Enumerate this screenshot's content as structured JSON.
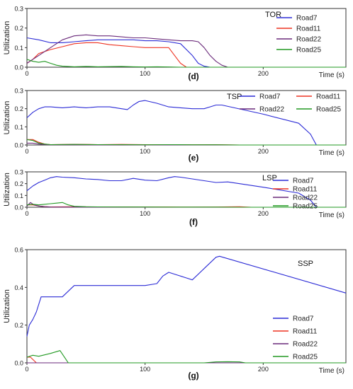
{
  "colors": {
    "Road7": "#2b2bd6",
    "Road11": "#ee3322",
    "Road22": "#6a2a7a",
    "Road25": "#229922",
    "axis": "#333333"
  },
  "chart_data": [
    {
      "panel": "(d)",
      "type": "line",
      "title": "TOR",
      "xlabel": "Time (s)",
      "ylabel": "Utilization",
      "xlim": [
        0,
        270
      ],
      "ylim": [
        0,
        0.3
      ],
      "xticks": [
        0,
        100,
        200
      ],
      "yticks": [
        0,
        0.1,
        0.2,
        0.3
      ],
      "legend_position": "top-right",
      "series": [
        {
          "name": "Road7",
          "x": [
            0,
            10,
            20,
            30,
            40,
            50,
            60,
            70,
            80,
            90,
            100,
            110,
            120,
            130,
            140,
            145,
            150,
            155,
            160,
            270
          ],
          "y": [
            0.15,
            0.14,
            0.125,
            0.125,
            0.13,
            0.135,
            0.14,
            0.14,
            0.14,
            0.14,
            0.135,
            0.135,
            0.13,
            0.12,
            0.06,
            0.02,
            0.005,
            0.0,
            0.0,
            0.0
          ]
        },
        {
          "name": "Road11",
          "x": [
            0,
            5,
            10,
            20,
            30,
            40,
            50,
            60,
            70,
            80,
            90,
            100,
            110,
            120,
            125,
            130,
            135,
            270
          ],
          "y": [
            0.02,
            0.04,
            0.07,
            0.09,
            0.105,
            0.12,
            0.125,
            0.125,
            0.115,
            0.11,
            0.105,
            0.1,
            0.1,
            0.1,
            0.06,
            0.02,
            0.0,
            0.0
          ]
        },
        {
          "name": "Road22",
          "x": [
            0,
            5,
            10,
            20,
            30,
            40,
            50,
            60,
            70,
            80,
            90,
            100,
            110,
            120,
            130,
            140,
            145,
            150,
            155,
            160,
            165,
            170,
            270
          ],
          "y": [
            0.02,
            0.04,
            0.06,
            0.1,
            0.14,
            0.16,
            0.165,
            0.16,
            0.16,
            0.155,
            0.15,
            0.15,
            0.145,
            0.14,
            0.135,
            0.135,
            0.13,
            0.1,
            0.06,
            0.03,
            0.01,
            0.0,
            0.0
          ]
        },
        {
          "name": "Road25",
          "x": [
            0,
            5,
            10,
            15,
            20,
            25,
            30,
            40,
            50,
            60,
            70,
            80,
            90,
            100,
            110,
            120,
            130,
            140,
            150,
            160,
            170,
            270
          ],
          "y": [
            0.04,
            0.03,
            0.025,
            0.03,
            0.02,
            0.01,
            0.005,
            0.002,
            0.004,
            0.002,
            0.003,
            0.004,
            0.002,
            0.001,
            0.002,
            0.001,
            0.0,
            0.0,
            0.0,
            0.0,
            0.0,
            0.0
          ]
        }
      ]
    },
    {
      "panel": "(e)",
      "type": "line",
      "title": "TSP",
      "xlabel": "Time (s)",
      "ylabel": "Utilization",
      "xlim": [
        0,
        270
      ],
      "ylim": [
        0,
        0.3
      ],
      "xticks": [
        0,
        100,
        200
      ],
      "yticks": [
        0,
        0.1,
        0.2,
        0.3
      ],
      "legend_position": "top-right",
      "series": [
        {
          "name": "Road7",
          "x": [
            0,
            5,
            10,
            15,
            20,
            30,
            40,
            50,
            60,
            70,
            80,
            85,
            90,
            95,
            100,
            110,
            120,
            130,
            140,
            150,
            155,
            160,
            165,
            200,
            230,
            240,
            245,
            270
          ],
          "y": [
            0.15,
            0.18,
            0.2,
            0.21,
            0.21,
            0.205,
            0.21,
            0.205,
            0.21,
            0.21,
            0.2,
            0.195,
            0.22,
            0.24,
            0.245,
            0.23,
            0.21,
            0.205,
            0.2,
            0.2,
            0.21,
            0.22,
            0.22,
            0.17,
            0.12,
            0.06,
            0.0,
            0.0
          ]
        },
        {
          "name": "Road11",
          "x": [
            0,
            5,
            10,
            15,
            20,
            40,
            60,
            80,
            100,
            120,
            140,
            160,
            180,
            270
          ],
          "y": [
            0.03,
            0.03,
            0.015,
            0.005,
            0.002,
            0.004,
            0.002,
            0.003,
            0.002,
            0.002,
            0.001,
            0.002,
            0.0,
            0.0
          ]
        },
        {
          "name": "Road22",
          "x": [
            0,
            5,
            10,
            15,
            20,
            40,
            60,
            80,
            100,
            120,
            140,
            160,
            180,
            270
          ],
          "y": [
            0.01,
            0.01,
            0.005,
            0.002,
            0.001,
            0.001,
            0.0,
            0.001,
            0.0,
            0.0,
            0.0,
            0.0,
            0.0,
            0.0
          ]
        },
        {
          "name": "Road25",
          "x": [
            0,
            5,
            10,
            15,
            20,
            40,
            60,
            80,
            100,
            120,
            140,
            160,
            180,
            270
          ],
          "y": [
            0.03,
            0.025,
            0.01,
            0.005,
            0.002,
            0.003,
            0.002,
            0.002,
            0.001,
            0.002,
            0.001,
            0.001,
            0.0,
            0.0
          ]
        }
      ]
    },
    {
      "panel": "(f)",
      "type": "line",
      "title": "LSP",
      "xlabel": "Time (s)",
      "ylabel": "Utilization",
      "xlim": [
        0,
        270
      ],
      "ylim": [
        0,
        0.3
      ],
      "xticks": [
        0,
        100,
        200
      ],
      "yticks": [
        0,
        0.1,
        0.2,
        0.3
      ],
      "legend_position": "top-right",
      "series": [
        {
          "name": "Road7",
          "x": [
            0,
            5,
            10,
            15,
            20,
            25,
            30,
            40,
            50,
            60,
            70,
            80,
            90,
            100,
            110,
            120,
            125,
            130,
            140,
            150,
            160,
            170,
            200,
            230,
            240,
            245,
            270
          ],
          "y": [
            0.14,
            0.18,
            0.21,
            0.23,
            0.25,
            0.26,
            0.255,
            0.25,
            0.24,
            0.235,
            0.225,
            0.225,
            0.245,
            0.23,
            0.225,
            0.25,
            0.26,
            0.255,
            0.24,
            0.225,
            0.21,
            0.215,
            0.17,
            0.12,
            0.06,
            0.0,
            0.0
          ]
        },
        {
          "name": "Road11",
          "x": [
            0,
            5,
            10,
            15,
            20,
            40,
            60,
            80,
            100,
            120,
            140,
            160,
            180,
            190,
            270
          ],
          "y": [
            0.02,
            0.02,
            0.01,
            0.005,
            0.003,
            0.004,
            0.002,
            0.003,
            0.002,
            0.002,
            0.001,
            0.002,
            0.004,
            0.0,
            0.0
          ]
        },
        {
          "name": "Road22",
          "x": [
            0,
            3,
            6,
            10,
            15,
            20,
            40,
            60,
            80,
            100,
            120,
            140,
            160,
            180,
            270
          ],
          "y": [
            0.01,
            0.04,
            0.02,
            0.01,
            0.005,
            0.002,
            0.001,
            0.0,
            0.001,
            0.0,
            0.0,
            0.0,
            0.0,
            0.0,
            0.0
          ]
        },
        {
          "name": "Road25",
          "x": [
            0,
            5,
            10,
            15,
            20,
            25,
            30,
            35,
            40,
            50,
            60,
            80,
            100,
            120,
            140,
            160,
            180,
            270
          ],
          "y": [
            0.02,
            0.025,
            0.02,
            0.025,
            0.03,
            0.035,
            0.04,
            0.02,
            0.008,
            0.004,
            0.003,
            0.002,
            0.002,
            0.001,
            0.001,
            0.001,
            0.0,
            0.0
          ]
        }
      ]
    },
    {
      "panel": "(g)",
      "type": "line",
      "title": "SSP",
      "xlabel": "Time (s)",
      "ylabel": "Utilization",
      "xlim": [
        0,
        270
      ],
      "ylim": [
        0,
        0.6
      ],
      "xticks": [
        0,
        100,
        200
      ],
      "yticks": [
        0,
        0.2,
        0.4,
        0.6
      ],
      "legend_position": "lower-right",
      "series": [
        {
          "name": "Road7",
          "x": [
            0,
            2,
            5,
            8,
            12,
            30,
            40,
            100,
            110,
            115,
            120,
            135,
            140,
            150,
            160,
            163,
            270
          ],
          "y": [
            0.14,
            0.2,
            0.23,
            0.27,
            0.35,
            0.35,
            0.41,
            0.41,
            0.42,
            0.46,
            0.48,
            0.45,
            0.44,
            0.5,
            0.56,
            0.565,
            0.37
          ]
        },
        {
          "name": "Road11",
          "x": [
            0,
            3,
            8,
            15,
            270
          ],
          "y": [
            0.03,
            0.03,
            0.0,
            0.0,
            0.0
          ]
        },
        {
          "name": "Road22",
          "x": [
            0,
            270
          ],
          "y": [
            0.0,
            0.0
          ]
        },
        {
          "name": "Road25",
          "x": [
            0,
            5,
            10,
            20,
            28,
            35,
            45,
            150,
            160,
            170,
            180,
            185,
            270
          ],
          "y": [
            0.03,
            0.04,
            0.035,
            0.05,
            0.065,
            0.0,
            0.0,
            0.0,
            0.005,
            0.006,
            0.005,
            0.0,
            0.0
          ]
        }
      ]
    }
  ]
}
